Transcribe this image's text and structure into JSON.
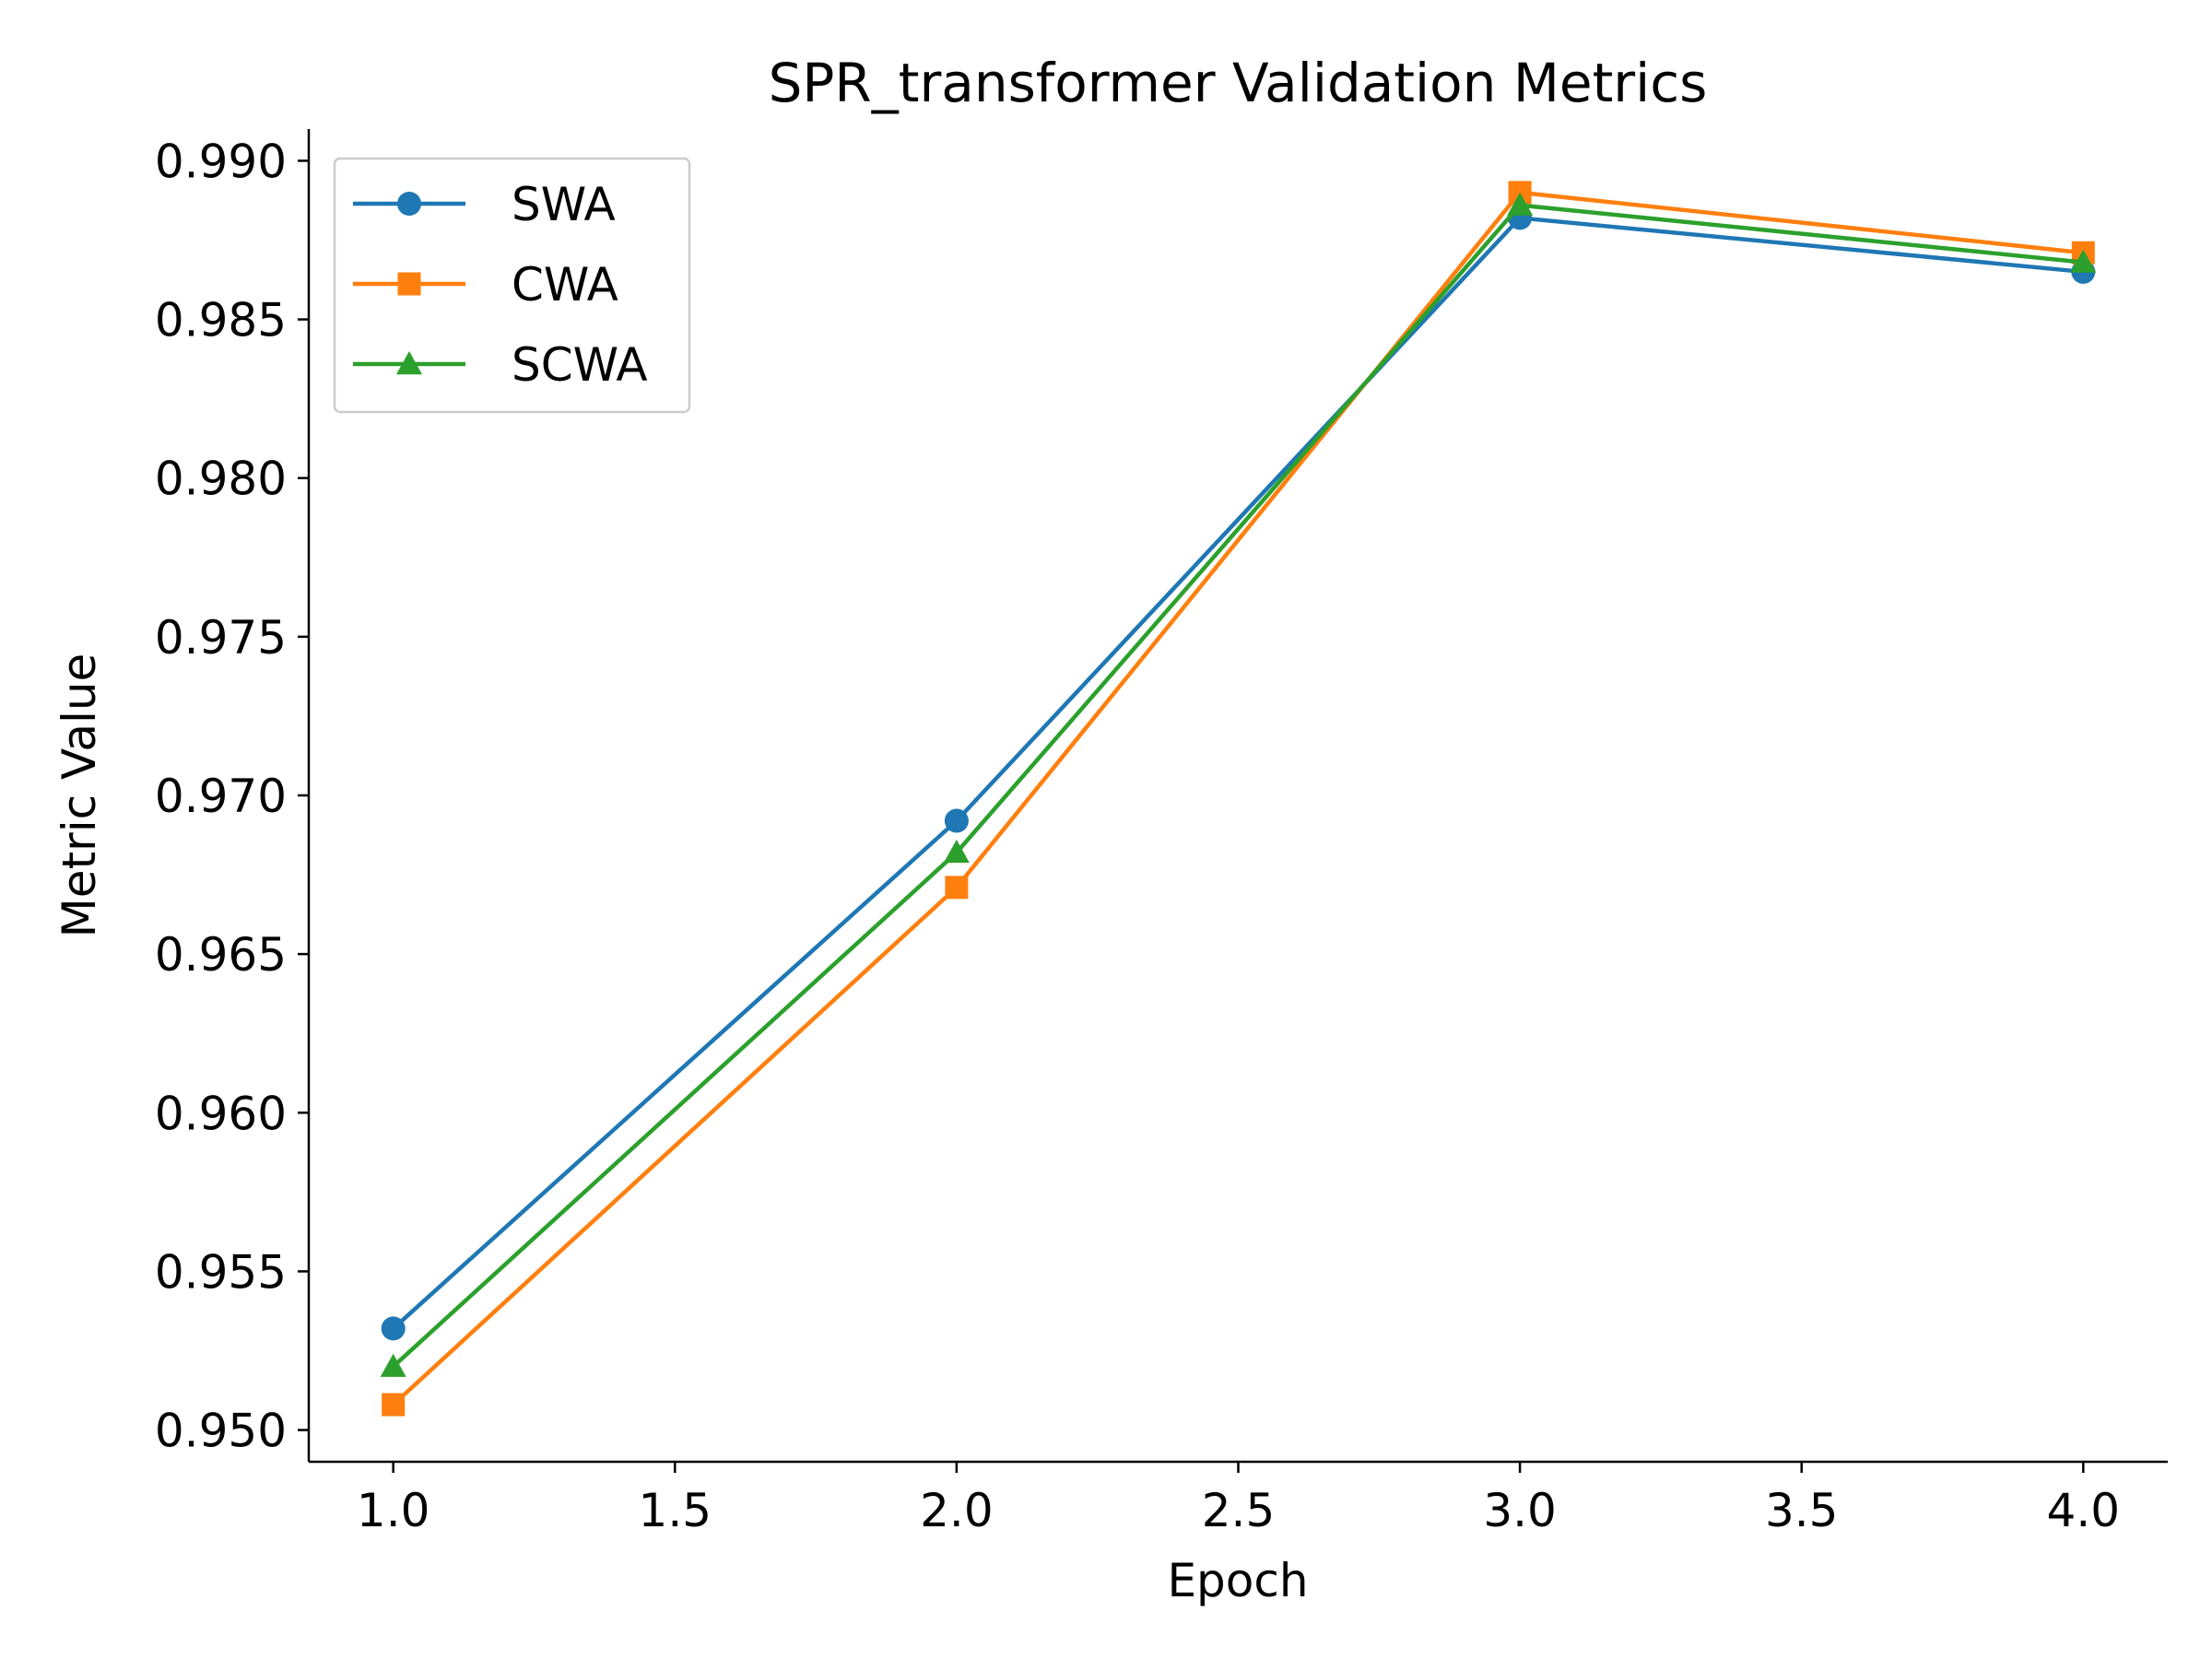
{
  "chart_data": {
    "type": "line",
    "title": "SPR_transformer Validation Metrics",
    "xlabel": "Epoch",
    "ylabel": "Metric Value",
    "x": [
      1.0,
      2.0,
      3.0,
      4.0
    ],
    "xlim": [
      0.85,
      4.15
    ],
    "ylim": [
      0.949,
      0.991
    ],
    "xticks": [
      "1.0",
      "1.5",
      "2.0",
      "2.5",
      "3.0",
      "3.5",
      "4.0"
    ],
    "yticks": [
      "0.950",
      "0.955",
      "0.960",
      "0.965",
      "0.970",
      "0.975",
      "0.980",
      "0.985",
      "0.990"
    ],
    "grid": false,
    "legend_position": "upper-left",
    "series": [
      {
        "name": "SWA",
        "color": "#1f77b4",
        "marker": "circle",
        "values": [
          0.9532,
          0.9692,
          0.9882,
          0.9865
        ]
      },
      {
        "name": "CWA",
        "color": "#ff7f0e",
        "marker": "square",
        "values": [
          0.9508,
          0.9671,
          0.989,
          0.9871
        ]
      },
      {
        "name": "SCWA",
        "color": "#2ca02c",
        "marker": "triangle",
        "values": [
          0.952,
          0.9682,
          0.9886,
          0.9868
        ]
      }
    ]
  }
}
